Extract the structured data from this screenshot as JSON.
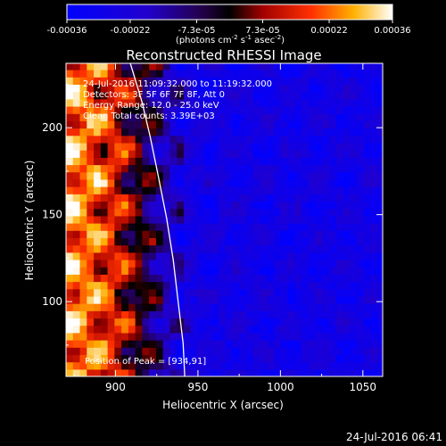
{
  "chart_data": {
    "type": "heatmap",
    "title": "Reconstructed RHESSI Image",
    "xlabel": "Heliocentric X (arcsec)",
    "ylabel": "Heliocentric Y (arcsec)",
    "xlim": [
      870,
      1062
    ],
    "ylim": [
      57,
      237
    ],
    "x_ticks": [
      900,
      950,
      1000,
      1050
    ],
    "y_ticks": [
      100,
      150,
      200
    ],
    "colorbar": {
      "range": [
        -0.00036,
        0.00036
      ],
      "tick_values": [
        -0.00036,
        -0.00022,
        -7.3e-05,
        7.3e-05,
        0.00022,
        0.00036
      ],
      "tick_labels": [
        "-0.00036",
        "-0.00022",
        "-7.3e-05",
        "7.3e-05",
        "0.00022",
        "0.00036"
      ],
      "unit_prefix": "(photons cm",
      "unit_exp1": "-2",
      "unit_mid": " s",
      "unit_exp2": "-1",
      "unit_mid2": " asec",
      "unit_exp3": "-2",
      "unit_suffix": ")"
    },
    "annotations": {
      "time_range": "24-Jul-2016 11:09:32.000 to 11:19:32.000",
      "detectors": "Detectors: 3F 5F 6F 7F 8F, Att 0",
      "energy": "Energy Range: 12.0 - 25.0 keV",
      "clean": "Clean    Total counts: 3.39E+03",
      "peak": "Position of Peak = [934,91]"
    },
    "peak_position": [
      934,
      91
    ],
    "limb_curve": [
      [
        909,
        237
      ],
      [
        916,
        215
      ],
      [
        921,
        195
      ],
      [
        926,
        172
      ],
      [
        931,
        148
      ],
      [
        935,
        124
      ],
      [
        938,
        100
      ],
      [
        941,
        76
      ],
      [
        942,
        57
      ]
    ],
    "grid": false,
    "legend": "none"
  },
  "footer": {
    "timestamp": "24-Jul-2016 06:41"
  },
  "colors": {
    "background": "#000000",
    "axes": "#ffffff",
    "text": "#ffffff",
    "limb": "#ffffff"
  }
}
